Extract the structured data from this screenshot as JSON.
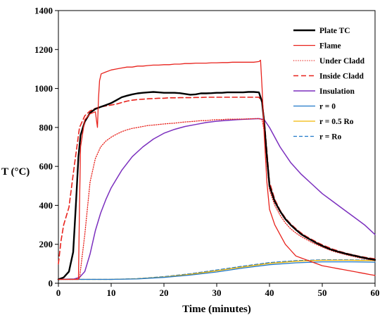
{
  "chart_data": {
    "type": "line",
    "xlabel": "Time (minutes)",
    "ylabel": "T (°C)",
    "xlim": [
      0,
      60
    ],
    "ylim": [
      0,
      1400
    ],
    "xticks": [
      0,
      10,
      20,
      30,
      40,
      50,
      60
    ],
    "yticks": [
      0,
      200,
      400,
      600,
      800,
      1000,
      1200,
      1400
    ],
    "grid": false,
    "legend_position": "top-right",
    "series": [
      {
        "name": "Plate TC",
        "color": "#000000",
        "dash": "solid",
        "width": 2.4,
        "x": [
          0,
          1,
          2,
          2.8,
          3.3,
          3.8,
          4.2,
          5,
          6,
          7,
          8,
          9,
          10,
          11,
          12,
          13,
          14,
          15,
          16,
          17,
          18,
          19,
          20,
          21,
          22,
          23,
          24,
          25,
          26,
          27,
          28,
          29,
          30,
          31,
          32,
          33,
          34,
          35,
          36,
          37,
          38,
          38.6,
          39,
          39.5,
          40,
          41,
          42,
          43,
          44,
          45,
          46,
          47,
          48,
          49,
          50,
          51,
          52,
          53,
          54,
          55,
          56,
          57,
          58,
          59,
          60
        ],
        "y": [
          20,
          30,
          60,
          160,
          400,
          650,
          760,
          830,
          875,
          895,
          905,
          915,
          925,
          940,
          955,
          963,
          970,
          975,
          978,
          980,
          982,
          980,
          978,
          978,
          978,
          976,
          972,
          968,
          970,
          975,
          975,
          976,
          978,
          978,
          980,
          980,
          980,
          980,
          982,
          982,
          980,
          930,
          820,
          650,
          500,
          420,
          370,
          330,
          300,
          275,
          252,
          235,
          220,
          205,
          192,
          180,
          170,
          162,
          155,
          148,
          142,
          136,
          130,
          125,
          120
        ]
      },
      {
        "name": "Flame",
        "color": "#e8221c",
        "dash": "solid",
        "width": 1.3,
        "x": [
          0,
          3.5,
          3.8,
          4.0,
          4.2,
          5,
          6,
          7,
          7.4,
          7.6,
          7.8,
          8.1,
          9,
          10,
          11,
          12,
          13,
          14,
          15,
          16,
          17,
          18,
          19,
          20,
          21,
          22,
          23,
          24,
          25,
          26,
          27,
          28,
          29,
          30,
          31,
          32,
          33,
          34,
          35,
          36,
          37,
          38,
          38.3,
          38.6,
          39,
          39.5,
          40,
          41,
          42,
          43,
          44,
          45,
          46,
          47,
          48,
          49,
          50,
          51,
          52,
          53,
          54,
          55,
          56,
          57,
          58,
          59,
          60
        ],
        "y": [
          20,
          20,
          20,
          400,
          700,
          840,
          870,
          880,
          800,
          950,
          1040,
          1075,
          1085,
          1095,
          1100,
          1105,
          1110,
          1110,
          1115,
          1115,
          1118,
          1120,
          1120,
          1122,
          1122,
          1125,
          1125,
          1128,
          1128,
          1130,
          1130,
          1130,
          1132,
          1132,
          1133,
          1133,
          1135,
          1135,
          1135,
          1135,
          1135,
          1138,
          1145,
          1000,
          760,
          520,
          380,
          300,
          250,
          200,
          170,
          140,
          130,
          120,
          110,
          100,
          90,
          85,
          80,
          75,
          70,
          65,
          60,
          55,
          50,
          45,
          40
        ]
      },
      {
        "name": "Under Cladd",
        "color": "#e8221c",
        "dash": "1.2 2",
        "width": 1.3,
        "x": [
          0,
          2,
          3,
          4,
          5,
          6,
          7,
          8,
          9,
          10,
          11,
          12,
          13,
          14,
          15,
          16,
          17,
          18,
          19,
          20,
          21,
          22,
          23,
          24,
          25,
          26,
          27,
          28,
          29,
          30,
          31,
          32,
          33,
          34,
          35,
          36,
          37,
          38,
          38.6,
          39,
          39.5,
          40,
          41,
          42,
          43,
          44,
          45,
          46,
          47,
          48,
          49,
          50,
          51,
          52,
          53,
          54,
          55,
          56,
          57,
          58,
          59,
          60
        ],
        "y": [
          20,
          20,
          20,
          25,
          250,
          520,
          640,
          700,
          730,
          750,
          765,
          778,
          788,
          795,
          800,
          805,
          810,
          812,
          815,
          818,
          820,
          822,
          825,
          828,
          830,
          832,
          835,
          835,
          838,
          840,
          840,
          842,
          842,
          843,
          843,
          844,
          845,
          845,
          840,
          780,
          620,
          480,
          400,
          350,
          310,
          280,
          258,
          240,
          225,
          210,
          198,
          186,
          175,
          165,
          157,
          150,
          143,
          137,
          131,
          126,
          121,
          117
        ]
      },
      {
        "name": "Inside Cladd",
        "color": "#e8221c",
        "dash": "7 4",
        "width": 1.6,
        "x": [
          0,
          0.5,
          1,
          2,
          3,
          4,
          5,
          6,
          7,
          8,
          9,
          10,
          11,
          12,
          13,
          14,
          15,
          16,
          17,
          18,
          19,
          20,
          21,
          22,
          23,
          24,
          25,
          26,
          27,
          28,
          29,
          30,
          31,
          32,
          33,
          34,
          35,
          36,
          37,
          38,
          38.6,
          39,
          39.5,
          40,
          41,
          42,
          43,
          44,
          45,
          46,
          47,
          48,
          49,
          50,
          51,
          52,
          53,
          54,
          55,
          56,
          57,
          58,
          59,
          60
        ],
        "y": [
          100,
          220,
          300,
          390,
          600,
          800,
          860,
          885,
          898,
          905,
          910,
          915,
          920,
          928,
          935,
          940,
          943,
          945,
          947,
          948,
          950,
          950,
          952,
          952,
          953,
          953,
          953,
          954,
          954,
          955,
          955,
          955,
          955,
          955,
          955,
          955,
          955,
          955,
          955,
          955,
          930,
          840,
          680,
          520,
          430,
          375,
          335,
          305,
          280,
          258,
          240,
          225,
          210,
          197,
          186,
          175,
          166,
          158,
          151,
          145,
          139,
          134,
          129,
          125
        ]
      },
      {
        "name": "Insulation",
        "color": "#7b2fbe",
        "dash": "solid",
        "width": 1.5,
        "x": [
          0,
          3,
          4,
          5,
          6,
          7,
          8,
          9,
          10,
          12,
          14,
          16,
          18,
          20,
          22,
          24,
          26,
          28,
          30,
          32,
          34,
          36,
          38,
          39,
          40,
          42,
          44,
          46,
          48,
          50,
          52,
          54,
          56,
          58,
          60
        ],
        "y": [
          20,
          22,
          30,
          60,
          150,
          270,
          360,
          430,
          490,
          580,
          650,
          700,
          740,
          770,
          790,
          805,
          815,
          825,
          832,
          836,
          840,
          843,
          845,
          840,
          800,
          700,
          620,
          560,
          510,
          460,
          420,
          380,
          340,
          300,
          250
        ]
      },
      {
        "name": "r = 0",
        "color": "#1f77c8",
        "dash": "solid",
        "width": 1.3,
        "x": [
          0,
          5,
          10,
          15,
          20,
          25,
          30,
          35,
          40,
          45,
          50,
          55,
          60
        ],
        "y": [
          20,
          20,
          20,
          22,
          30,
          42,
          58,
          78,
          95,
          105,
          110,
          110,
          108
        ]
      },
      {
        "name": "r = 0.5 Ro",
        "color": "#f2b705",
        "dash": "solid",
        "width": 1.3,
        "x": [
          0,
          5,
          10,
          15,
          20,
          25,
          30,
          35,
          40,
          45,
          50,
          55,
          60
        ],
        "y": [
          20,
          20,
          20,
          23,
          32,
          46,
          64,
          84,
          102,
          113,
          118,
          118,
          116
        ]
      },
      {
        "name": "r = Ro",
        "color": "#1f77c8",
        "dash": "5 3",
        "width": 1.3,
        "x": [
          0,
          5,
          10,
          15,
          20,
          25,
          30,
          35,
          40,
          45,
          50,
          55,
          60
        ],
        "y": [
          20,
          20,
          20,
          24,
          34,
          49,
          68,
          88,
          106,
          116,
          120,
          120,
          118
        ]
      }
    ]
  }
}
